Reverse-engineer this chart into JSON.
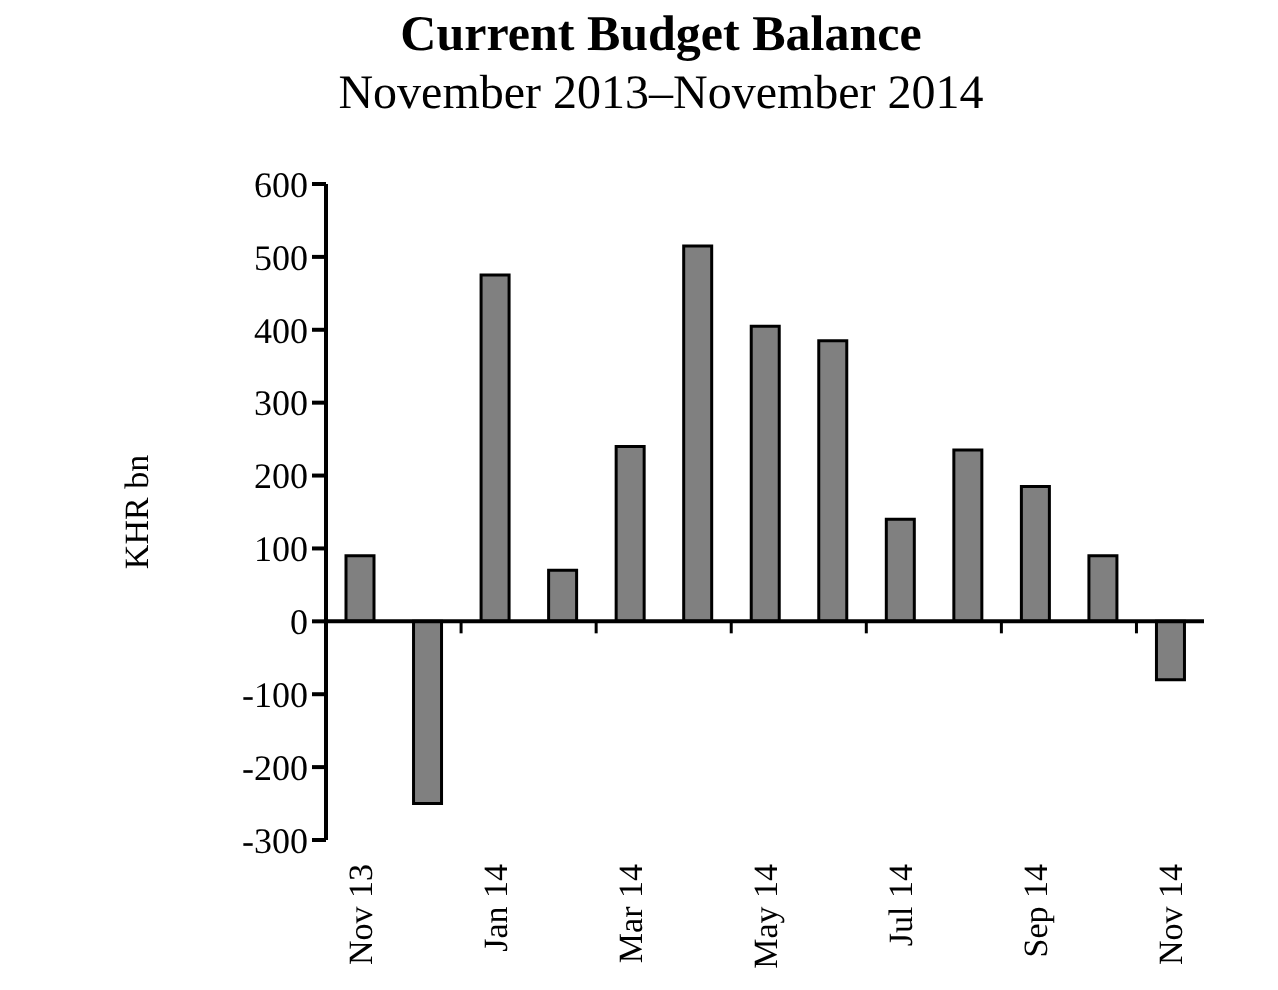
{
  "chart_data": {
    "type": "bar",
    "title": "Current Budget Balance",
    "subtitle": "November 2013–November 2014",
    "ylabel": "KHR bn",
    "categories": [
      "Nov 13",
      null,
      "Jan 14",
      null,
      "Mar 14",
      null,
      "May 14",
      null,
      "Jul 14",
      null,
      "Sep 14",
      null,
      "Nov 14"
    ],
    "values": [
      90,
      -250,
      475,
      70,
      240,
      515,
      405,
      385,
      140,
      235,
      185,
      90,
      -80
    ],
    "color": "#808080",
    "ylim": [
      -300,
      600
    ],
    "yticks": [
      -300,
      -200,
      -100,
      0,
      100,
      200,
      300,
      400,
      500,
      600
    ]
  }
}
